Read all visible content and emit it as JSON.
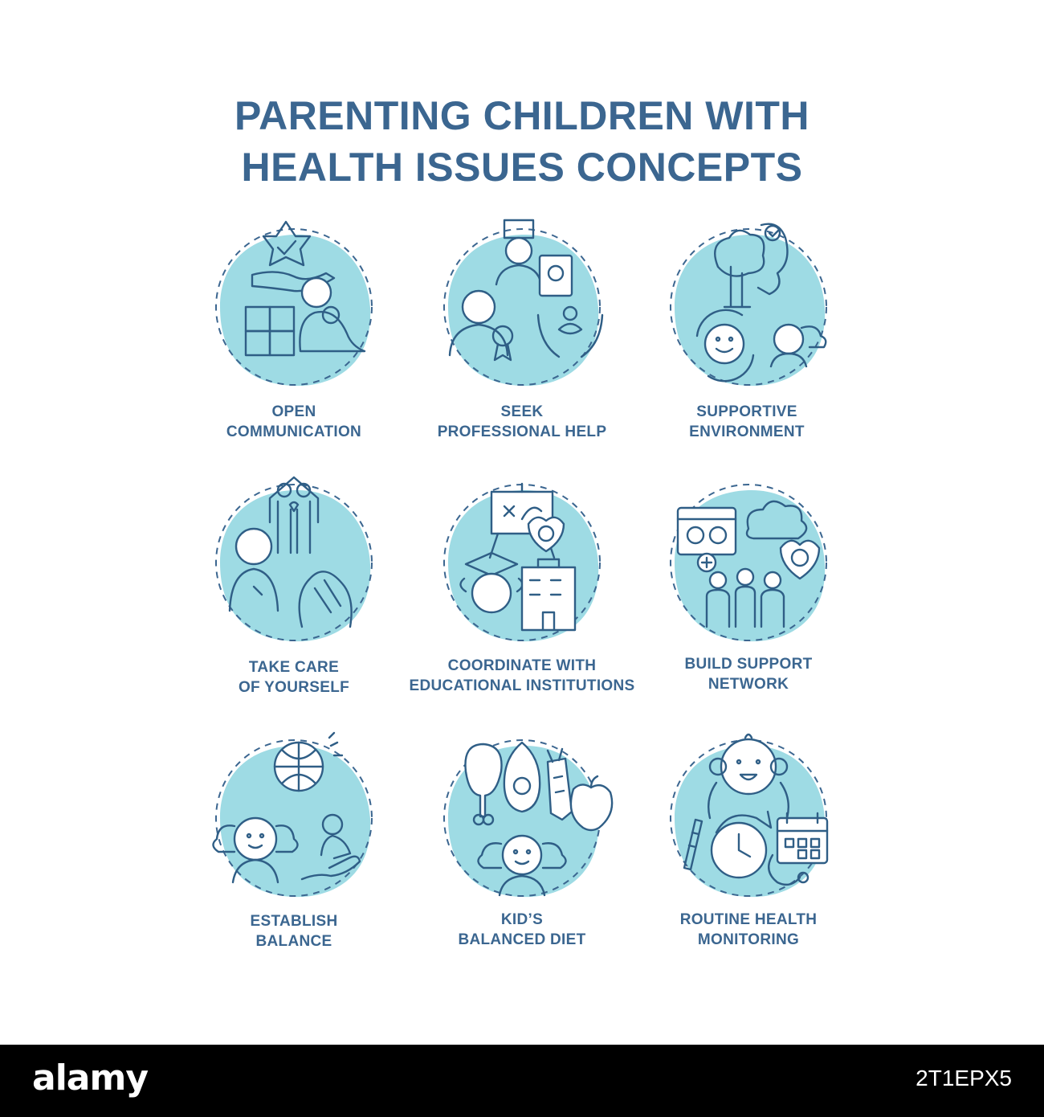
{
  "title": {
    "line1": "PARENTING CHILDREN WITH",
    "line2": "HEALTH ISSUES CONCEPTS"
  },
  "concepts": [
    {
      "line1": "OPEN",
      "line2": "COMMUNICATION",
      "icon": "hands-star-people-icon"
    },
    {
      "line1": "SEEK",
      "line2": "PROFESSIONAL HELP",
      "icon": "doctor-care-icon"
    },
    {
      "line1": "SUPPORTIVE",
      "line2": "ENVIRONMENT",
      "icon": "nature-child-icon"
    },
    {
      "line1": "TAKE CARE",
      "line2": "OF YOURSELF",
      "icon": "self-care-icon"
    },
    {
      "line1": "COORDINATE WITH",
      "line2": "EDUCATIONAL INSTITUTIONS",
      "icon": "school-board-icon"
    },
    {
      "line1": "BUILD SUPPORT",
      "line2": "NETWORK",
      "icon": "support-group-icon"
    },
    {
      "line1": "ESTABLISH",
      "line2": "BALANCE",
      "icon": "globe-child-icon"
    },
    {
      "line1": "KID’S",
      "line2": "BALANCED DIET",
      "icon": "healthy-food-icon"
    },
    {
      "line1": "ROUTINE HEALTH",
      "line2": "MONITORING",
      "icon": "baby-schedule-icon"
    }
  ],
  "footer": {
    "logo": "alamy",
    "image_id": "2T1EPX5"
  },
  "colors": {
    "text": "#3b6690",
    "accent": "#9edbe4",
    "line": "#2f5e86"
  }
}
